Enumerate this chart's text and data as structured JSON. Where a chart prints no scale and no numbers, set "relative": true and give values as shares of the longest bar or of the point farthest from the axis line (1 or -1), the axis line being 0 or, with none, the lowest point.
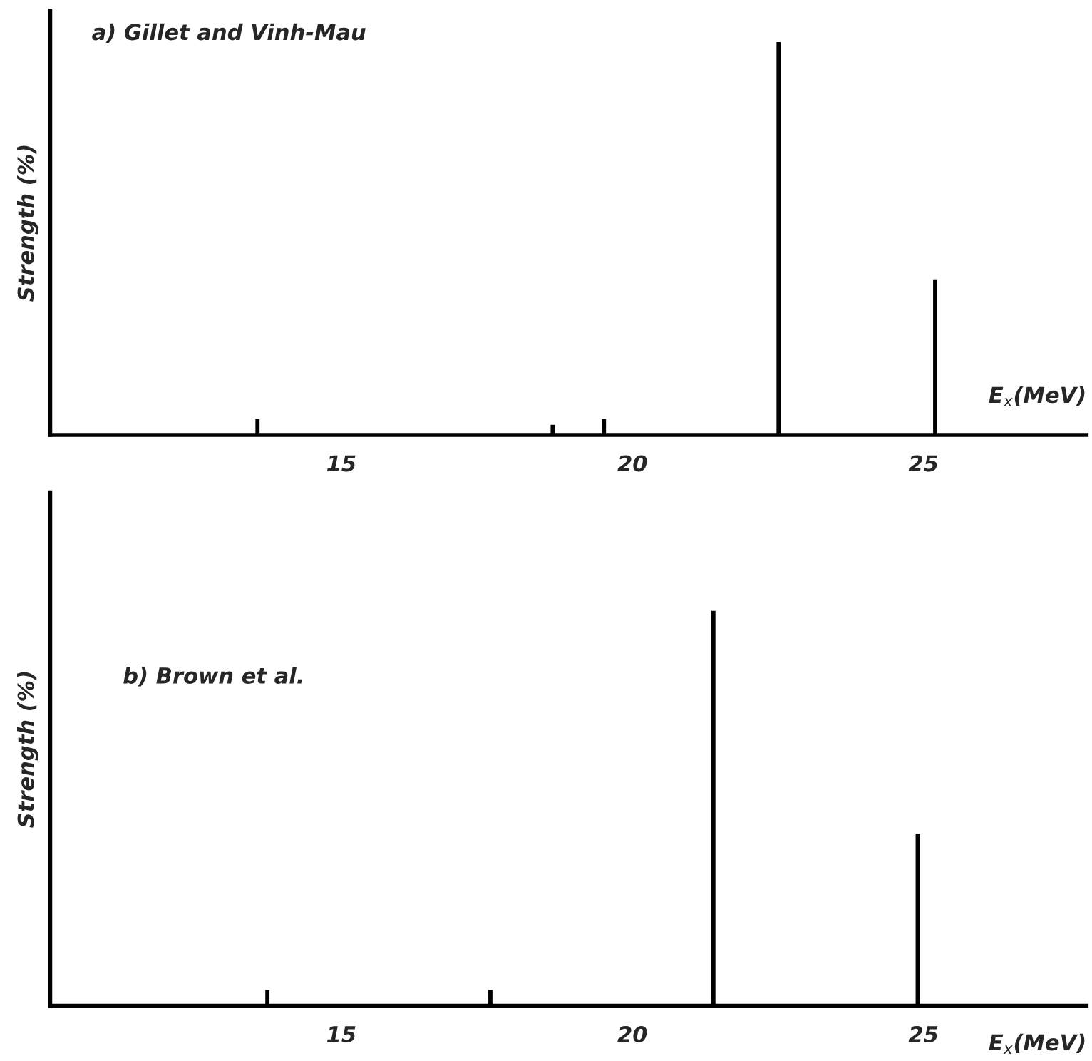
{
  "chart_data": [
    {
      "type": "bar",
      "title": "a) Gillet and Vinh-Mau",
      "xlabel": "E$_{x}$(MeV)",
      "ylabel": "Strength (%)",
      "relative": true,
      "grid": false,
      "legend": false,
      "x": [
        13.56,
        18.63,
        19.51,
        22.51,
        25.2
      ],
      "values": [
        0.04,
        0.026,
        0.04,
        1,
        0.396
      ],
      "color": "#000000",
      "xlim": [
        10,
        27.8
      ],
      "xticks": [
        15,
        20,
        25
      ]
    },
    {
      "type": "bar",
      "title": "b) Brown et al.",
      "xlabel": "E$_{x}$(MeV)",
      "ylabel": "Strength (%)",
      "relative": true,
      "grid": false,
      "legend": false,
      "x": [
        13.73,
        17.56,
        21.39,
        24.9
      ],
      "values": [
        0.04,
        0.04,
        1,
        0.436
      ],
      "color": "#000000",
      "xlim": [
        10,
        27.8
      ],
      "xticks": [
        15,
        20,
        25
      ]
    }
  ]
}
